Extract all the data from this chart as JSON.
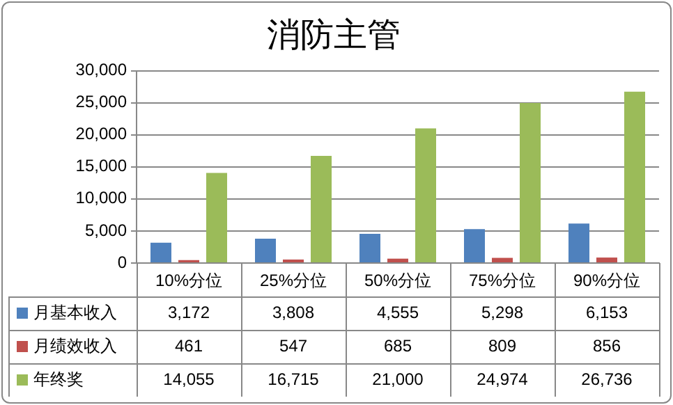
{
  "chart_data": {
    "type": "bar",
    "title": "消防主管",
    "categories": [
      "10%分位",
      "25%分位",
      "50%分位",
      "75%分位",
      "90%分位"
    ],
    "series": [
      {
        "name": "月基本收入",
        "color": "#4f81bd",
        "values": [
          3172,
          3808,
          4555,
          5298,
          6153
        ],
        "value_labels": [
          "3,172",
          "3,808",
          "4,555",
          "5,298",
          "6,153"
        ]
      },
      {
        "name": "月绩效收入",
        "color": "#c0504d",
        "values": [
          461,
          547,
          685,
          809,
          856
        ],
        "value_labels": [
          "461",
          "547",
          "685",
          "809",
          "856"
        ]
      },
      {
        "name": "年终奖",
        "color": "#9bbb59",
        "values": [
          14055,
          16715,
          21000,
          24974,
          26736
        ],
        "value_labels": [
          "14,055",
          "16,715",
          "21,000",
          "24,974",
          "26,736"
        ]
      }
    ],
    "ylim": [
      0,
      30000
    ],
    "yticks": [
      0,
      {
        "value": 5000,
        "label": "5,000"
      },
      {
        "value": 10000,
        "label": "10,000"
      },
      {
        "value": 15000,
        "label": "15,000"
      },
      {
        "value": 20000,
        "label": "20,000"
      },
      {
        "value": 25000,
        "label": "25,000"
      },
      {
        "value": 30000,
        "label": "30,000"
      }
    ],
    "grid": "y",
    "legend": "bottom"
  }
}
